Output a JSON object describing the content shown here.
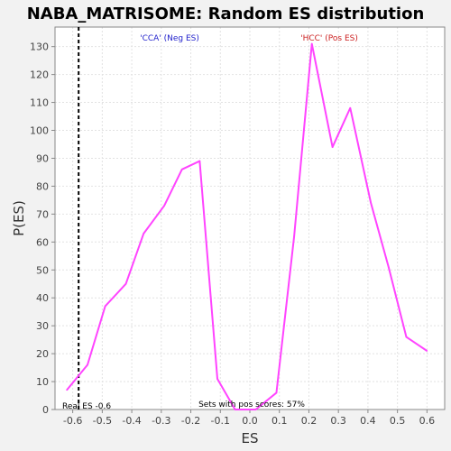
{
  "chart_data": {
    "type": "line",
    "title": "NABA_MATRISOME: Random ES distribution",
    "xlabel": "ES",
    "ylabel": "P(ES)",
    "xlim": [
      -0.66,
      0.66
    ],
    "ylim": [
      0,
      137
    ],
    "x_ticks": [
      "-0.6",
      "-0.5",
      "-0.4",
      "-0.3",
      "-0.2",
      "-0.1",
      "0.0",
      "0.1",
      "0.2",
      "0.3",
      "0.4",
      "0.5",
      "0.6"
    ],
    "y_ticks": [
      "0",
      "10",
      "20",
      "30",
      "40",
      "50",
      "60",
      "70",
      "80",
      "90",
      "100",
      "110",
      "120",
      "130"
    ],
    "grid": true,
    "line_color": "#ff44ff",
    "series": [
      {
        "x": [
          -0.62,
          -0.55,
          -0.49,
          -0.42,
          -0.36,
          -0.29,
          -0.23,
          -0.17,
          -0.11,
          -0.05,
          0.02,
          0.09,
          0.15,
          0.21,
          0.28,
          0.34,
          0.41,
          0.47,
          0.53,
          0.6
        ],
        "y": [
          7,
          16,
          37,
          45,
          63,
          73,
          86,
          89,
          11,
          0,
          0,
          6,
          62,
          131,
          94,
          108,
          74,
          51,
          26,
          21
        ]
      }
    ],
    "real_es": {
      "x": -0.58,
      "label": "Real ES -0.6",
      "color": "#000000"
    },
    "annotations": {
      "neg_label": "'CCA' (Neg ES)",
      "neg_color": "#2222cc",
      "pos_label": "'HCC' (Pos ES)",
      "pos_color": "#cc2222",
      "pos_scores_label": "Sets with pos scores: 57%"
    }
  }
}
